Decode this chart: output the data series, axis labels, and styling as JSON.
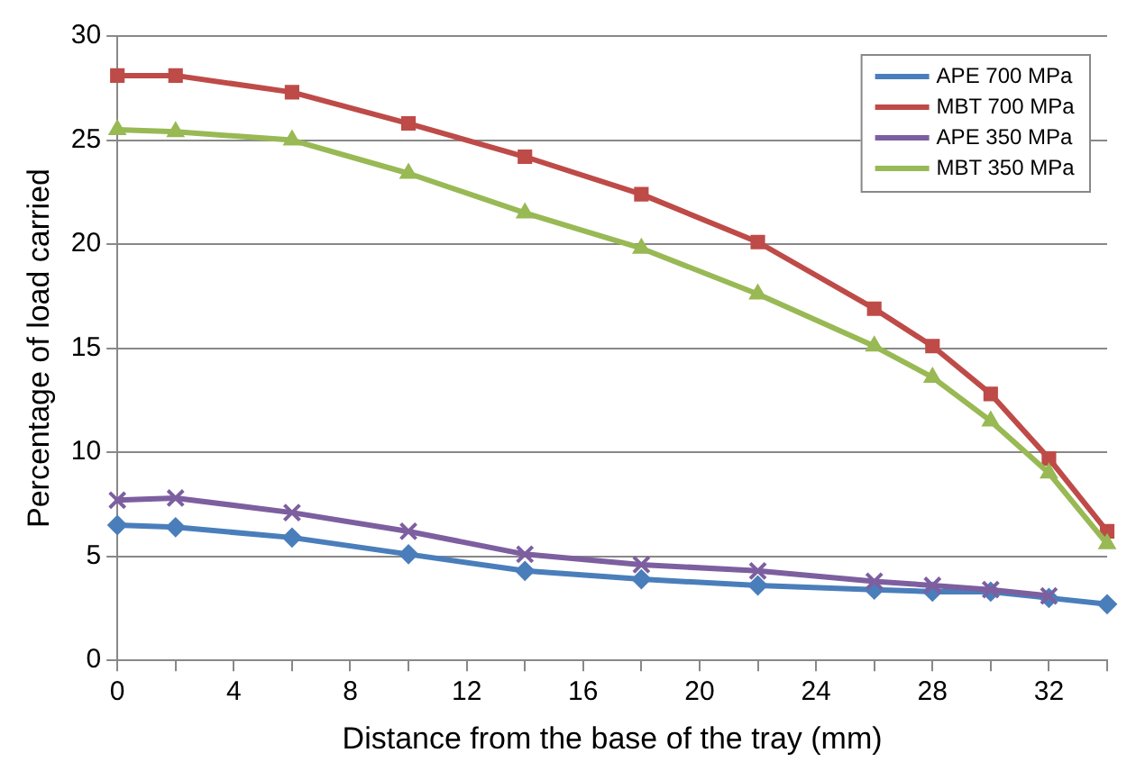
{
  "chart_data": {
    "type": "line",
    "xlabel": "Distance from the base of the tray (mm)",
    "ylabel": "Percentage of load carried",
    "x": [
      0,
      2,
      6,
      10,
      14,
      18,
      22,
      26,
      28,
      30,
      32,
      34
    ],
    "series": [
      {
        "name": "APE 700 MPa",
        "color": "#4a7ebb",
        "marker": "diamond",
        "values": [
          6.5,
          6.4,
          5.9,
          5.1,
          4.3,
          3.9,
          3.6,
          3.4,
          3.3,
          3.3,
          3.0,
          2.7
        ]
      },
      {
        "name": "MBT 700 MPa",
        "color": "#be4b48",
        "marker": "square",
        "values": [
          28.1,
          28.1,
          27.3,
          25.8,
          24.2,
          22.4,
          20.1,
          16.9,
          15.1,
          12.8,
          9.7,
          6.2
        ]
      },
      {
        "name": "APE 350 MPa",
        "color": "#7d5fa0",
        "marker": "cross",
        "values": [
          7.7,
          7.8,
          7.1,
          6.2,
          5.1,
          4.6,
          4.3,
          3.8,
          3.6,
          3.4,
          3.1,
          null
        ]
      },
      {
        "name": "MBT 350 MPa",
        "color": "#98b954",
        "marker": "triangle",
        "values": [
          25.5,
          25.4,
          25.0,
          23.4,
          21.5,
          19.8,
          17.6,
          15.1,
          13.6,
          11.5,
          9.0,
          5.6
        ]
      }
    ],
    "xlim": [
      0,
      34
    ],
    "xticks": [
      0,
      {
        "value": 2,
        "label": null
      },
      4,
      {
        "value": 6,
        "label": null
      },
      8,
      {
        "value": 10,
        "label": null
      },
      12,
      {
        "value": 14,
        "label": null
      },
      16,
      {
        "value": 18,
        "label": null
      },
      20,
      {
        "value": 22,
        "label": null
      },
      24,
      {
        "value": 26,
        "label": null
      },
      28,
      {
        "value": 30,
        "label": null
      },
      32,
      {
        "value": 34,
        "label": null
      }
    ],
    "ylim": [
      0,
      30
    ],
    "yticks": [
      0,
      5,
      10,
      15,
      20,
      25,
      30
    ],
    "grid": "y",
    "legend": "top right",
    "line_style": "solid"
  }
}
